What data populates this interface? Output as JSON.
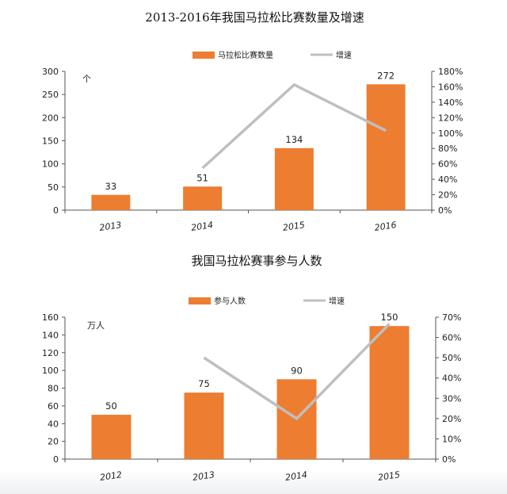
{
  "chart_data": [
    {
      "type": "bar",
      "title": "2013-2016年我国马拉松比赛数量及增速",
      "unit_label": "个",
      "categories": [
        "2013",
        "2014",
        "2015",
        "2016"
      ],
      "series": [
        {
          "name": "马拉松比赛数量",
          "type": "bar",
          "axis": "left",
          "values": [
            33,
            51,
            134,
            272
          ]
        },
        {
          "name": "增速",
          "type": "line",
          "axis": "right",
          "values": [
            null,
            54.5,
            162.7,
            103.0
          ]
        }
      ],
      "ylim": [
        0,
        300
      ],
      "yticks": [
        0,
        50,
        100,
        150,
        200,
        250,
        300
      ],
      "y2lim": [
        0,
        180
      ],
      "y2ticks": [
        "0%",
        "20%",
        "40%",
        "60%",
        "80%",
        "100%",
        "120%",
        "140%",
        "160%",
        "180%"
      ],
      "data_labels": [
        "33",
        "51",
        "134",
        "272"
      ],
      "legend_position": "top-center",
      "grid": false,
      "colors": {
        "bar": "#ED7D31",
        "line": "#BFBFBF"
      }
    },
    {
      "type": "bar",
      "title": "我国马拉松赛事参与人数",
      "unit_label": "万人",
      "categories": [
        "2012",
        "2013",
        "2014",
        "2015"
      ],
      "series": [
        {
          "name": "参与人数",
          "type": "bar",
          "axis": "left",
          "values": [
            50,
            75,
            90,
            150
          ]
        },
        {
          "name": "增速",
          "type": "line",
          "axis": "right",
          "values": [
            null,
            50,
            20,
            66.7
          ]
        }
      ],
      "ylim": [
        0,
        160
      ],
      "yticks": [
        0,
        20,
        40,
        60,
        80,
        100,
        120,
        140,
        160
      ],
      "y2lim": [
        0,
        70
      ],
      "y2ticks": [
        "0%",
        "10%",
        "20%",
        "30%",
        "40%",
        "50%",
        "60%",
        "70%"
      ],
      "data_labels": [
        "50",
        "75",
        "90",
        "150"
      ],
      "legend_position": "top-center",
      "grid": false,
      "colors": {
        "bar": "#ED7D31",
        "line": "#BFBFBF"
      }
    }
  ]
}
